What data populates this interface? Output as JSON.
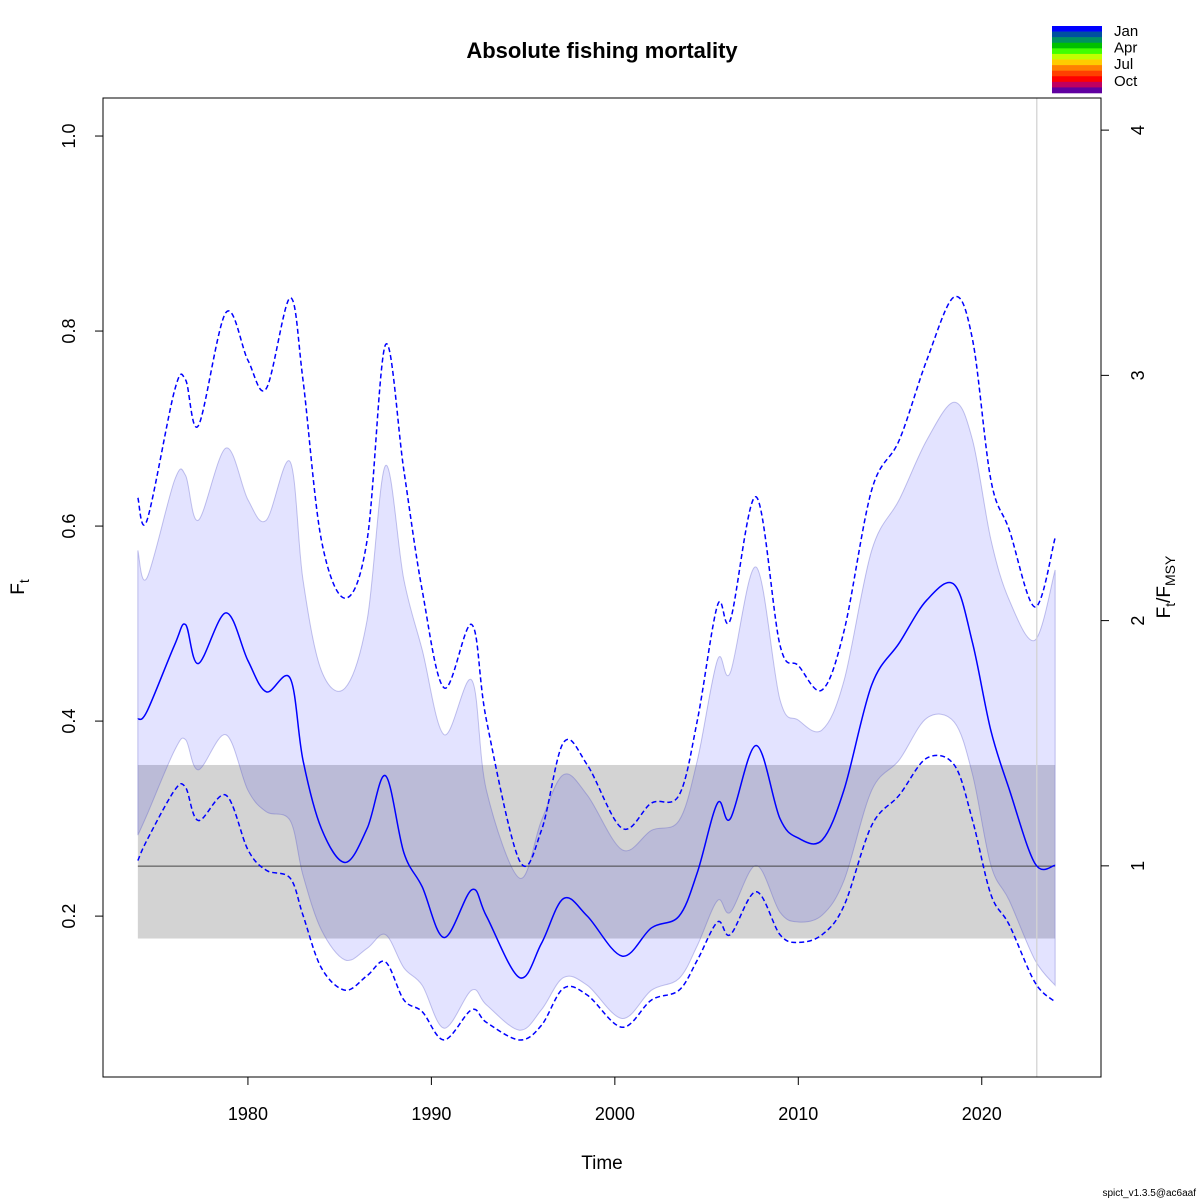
{
  "chart_data": {
    "type": "line",
    "title": "Absolute fishing mortality",
    "xlabel": "Time",
    "ylabel": [
      {
        "text": "F"
      },
      {
        "text": "t",
        "sub": true
      }
    ],
    "y2label": [
      {
        "text": "F"
      },
      {
        "text": "t",
        "sub": true
      },
      {
        "text": "/F"
      },
      {
        "text": "MSY",
        "sub": true
      }
    ],
    "footer": "spict_v1.3.5@ac6aaf",
    "x": [
      1974,
      1974.5,
      1976,
      1976.6,
      1977.3,
      1978.8,
      1980,
      1981,
      1982.3,
      1983,
      1984,
      1985.3,
      1986.5,
      1987.5,
      1988.5,
      1989.5,
      1990.7,
      1992.2,
      1993,
      1994.8,
      1996,
      1997.2,
      1998.5,
      2000.4,
      2002,
      2003.5,
      2004.5,
      2005.6,
      2006.3,
      2007.7,
      2009,
      2010,
      2011.3,
      2012.5,
      2014,
      2015.5,
      2017,
      2018.5,
      2019.5,
      2020.5,
      2021.5,
      2022.9,
      2024
    ],
    "band": {
      "color": "rgba(0,0,255,0.11)",
      "edge": "rgba(90,90,200,0.35)",
      "upper": [
        0.575,
        0.547,
        0.647,
        0.652,
        0.606,
        0.68,
        0.627,
        0.606,
        0.666,
        0.545,
        0.452,
        0.434,
        0.504,
        0.662,
        0.545,
        0.473,
        0.386,
        0.442,
        0.329,
        0.239,
        0.298,
        0.345,
        0.324,
        0.268,
        0.288,
        0.298,
        0.36,
        0.463,
        0.45,
        0.558,
        0.422,
        0.401,
        0.391,
        0.442,
        0.575,
        0.627,
        0.688,
        0.727,
        0.688,
        0.586,
        0.524,
        0.483,
        0.555
      ],
      "lower": [
        0.283,
        0.304,
        0.37,
        0.381,
        0.35,
        0.386,
        0.329,
        0.307,
        0.298,
        0.242,
        0.186,
        0.155,
        0.167,
        0.181,
        0.147,
        0.129,
        0.085,
        0.124,
        0.109,
        0.083,
        0.104,
        0.137,
        0.129,
        0.095,
        0.124,
        0.136,
        0.17,
        0.216,
        0.204,
        0.252,
        0.204,
        0.194,
        0.201,
        0.237,
        0.329,
        0.36,
        0.403,
        0.399,
        0.345,
        0.252,
        0.216,
        0.155,
        0.129
      ]
    },
    "series": [
      {
        "color": "#0000ff",
        "dash": false,
        "values": [
          0.402,
          0.41,
          0.478,
          0.499,
          0.459,
          0.511,
          0.462,
          0.43,
          0.444,
          0.36,
          0.29,
          0.255,
          0.29,
          0.344,
          0.265,
          0.23,
          0.178,
          0.227,
          0.2,
          0.137,
          0.172,
          0.218,
          0.2,
          0.159,
          0.188,
          0.2,
          0.245,
          0.316,
          0.3,
          0.375,
          0.3,
          0.28,
          0.278,
          0.33,
          0.437,
          0.48,
          0.524,
          0.54,
          0.48,
          0.39,
          0.33,
          0.254,
          0.252
        ]
      },
      {
        "color": "#0000ff",
        "dash": true,
        "values": [
          0.629,
          0.606,
          0.739,
          0.75,
          0.703,
          0.819,
          0.77,
          0.741,
          0.834,
          0.75,
          0.586,
          0.526,
          0.586,
          0.786,
          0.657,
          0.534,
          0.434,
          0.499,
          0.401,
          0.257,
          0.288,
          0.378,
          0.355,
          0.29,
          0.316,
          0.324,
          0.401,
          0.519,
          0.504,
          0.63,
          0.478,
          0.457,
          0.432,
          0.493,
          0.637,
          0.688,
          0.77,
          0.835,
          0.791,
          0.647,
          0.596,
          0.517,
          0.588
        ]
      },
      {
        "color": "#0000ff",
        "dash": true,
        "values": [
          0.257,
          0.278,
          0.329,
          0.332,
          0.298,
          0.324,
          0.268,
          0.247,
          0.239,
          0.201,
          0.147,
          0.124,
          0.139,
          0.153,
          0.114,
          0.102,
          0.073,
          0.104,
          0.091,
          0.073,
          0.088,
          0.126,
          0.119,
          0.086,
          0.114,
          0.124,
          0.155,
          0.194,
          0.181,
          0.225,
          0.181,
          0.173,
          0.181,
          0.211,
          0.293,
          0.324,
          0.362,
          0.355,
          0.298,
          0.222,
          0.191,
          0.132,
          0.112
        ]
      }
    ],
    "reference_band": {
      "range": [
        0.177,
        0.355
      ],
      "color": "#d3d3d3"
    },
    "reference_line": {
      "value": 0.2513,
      "color": "#444444"
    },
    "vline": {
      "value": 2023,
      "color": "#d3d3d3"
    },
    "xlim": [
      1972.1,
      2026.5
    ],
    "xticks": [
      1980,
      1990,
      2000,
      2010,
      2020
    ],
    "ylim": [
      0.035,
      1.039
    ],
    "yticks": [
      0.2,
      0.4,
      0.6,
      0.8,
      {
        "value": 1,
        "label": "1.0"
      }
    ],
    "y2lim": [
      0.139,
      4.131
    ],
    "y2ticks": [
      1,
      2,
      3,
      4
    ],
    "month_legend": {
      "colors": [
        "#0000ff",
        "#0050a0",
        "#009060",
        "#00c000",
        "#40ff00",
        "#c0ff00",
        "#ffcc00",
        "#ff8000",
        "#ff4000",
        "#ff0000",
        "#c00060",
        "#6000a0"
      ],
      "labels": [
        "Jan",
        "Apr",
        "Jul",
        "Oct"
      ]
    }
  }
}
